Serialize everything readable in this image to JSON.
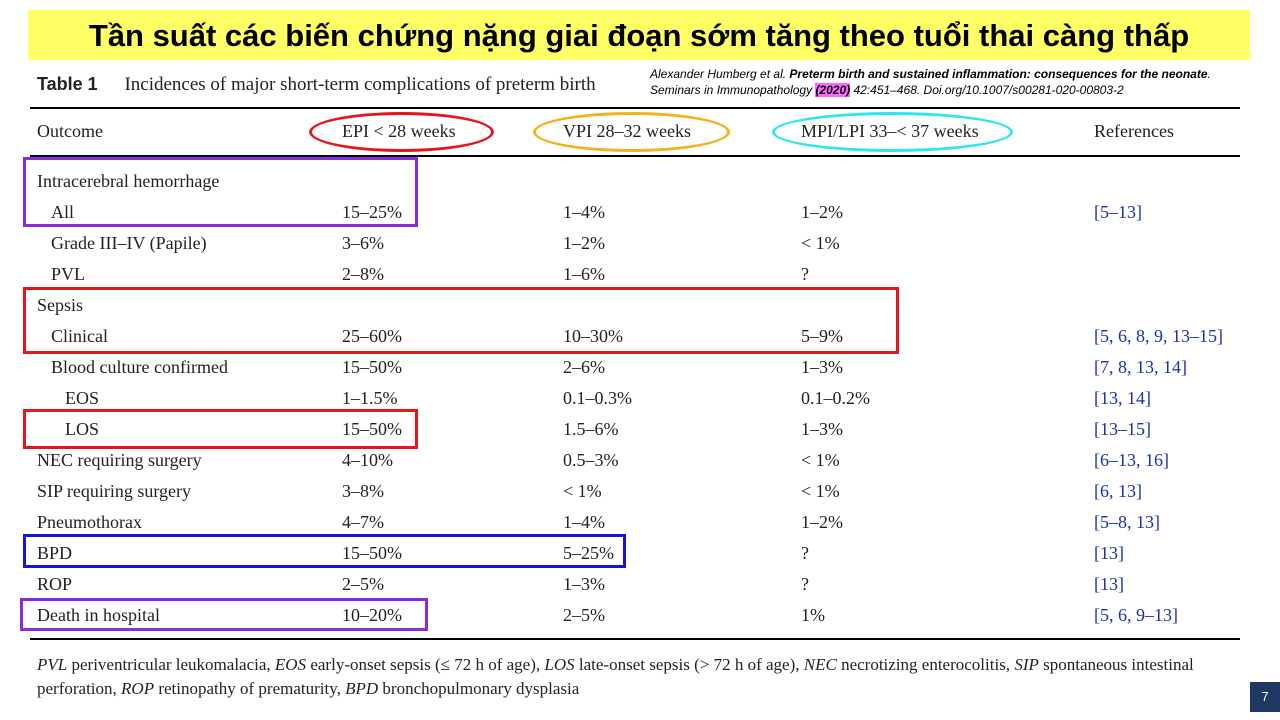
{
  "banner": {
    "title": "Tần suất các biến chứng nặng giai đoạn sớm tăng theo tuổi thai càng thấp"
  },
  "table": {
    "number": "Table 1",
    "caption": "Incidences of major short-term complications of preterm birth",
    "headers": [
      "Outcome",
      "EPI < 28 weeks",
      "VPI 28–32 weeks",
      "MPI/LPI 33–< 37 weeks",
      "References"
    ],
    "rows": [
      {
        "outcome": "Intracerebral hemorrhage",
        "indent": 0,
        "epi": "",
        "vpi": "",
        "mpi": "",
        "refs": ""
      },
      {
        "outcome": "All",
        "indent": 1,
        "epi": "15–25%",
        "vpi": "1–4%",
        "mpi": "1–2%",
        "refs": "[5–13]"
      },
      {
        "outcome": "Grade III–IV (Papile)",
        "indent": 1,
        "epi": "3–6%",
        "vpi": "1–2%",
        "mpi": "< 1%",
        "refs": ""
      },
      {
        "outcome": "PVL",
        "indent": 1,
        "epi": "2–8%",
        "vpi": "1–6%",
        "mpi": "?",
        "refs": ""
      },
      {
        "outcome": "Sepsis",
        "indent": 0,
        "epi": "",
        "vpi": "",
        "mpi": "",
        "refs": ""
      },
      {
        "outcome": "Clinical",
        "indent": 1,
        "epi": "25–60%",
        "vpi": "10–30%",
        "mpi": "5–9%",
        "refs": "[5, 6, 8, 9, 13–15]"
      },
      {
        "outcome": "Blood culture confirmed",
        "indent": 1,
        "epi": "15–50%",
        "vpi": "2–6%",
        "mpi": "1–3%",
        "refs": "[7, 8, 13, 14]"
      },
      {
        "outcome": "EOS",
        "indent": 2,
        "epi": "1–1.5%",
        "vpi": "0.1–0.3%",
        "mpi": "0.1–0.2%",
        "refs": "[13, 14]"
      },
      {
        "outcome": "LOS",
        "indent": 2,
        "epi": "15–50%",
        "vpi": "1.5–6%",
        "mpi": "1–3%",
        "refs": "[13–15]"
      },
      {
        "outcome": "NEC requiring surgery",
        "indent": 0,
        "epi": "4–10%",
        "vpi": "0.5–3%",
        "mpi": "< 1%",
        "refs": "[6–13, 16]"
      },
      {
        "outcome": "SIP requiring surgery",
        "indent": 0,
        "epi": "3–8%",
        "vpi": "< 1%",
        "mpi": "< 1%",
        "refs": "[6, 13]"
      },
      {
        "outcome": "Pneumothorax",
        "indent": 0,
        "epi": "4–7%",
        "vpi": "1–4%",
        "mpi": "1–2%",
        "refs": "[5–8, 13]"
      },
      {
        "outcome": "BPD",
        "indent": 0,
        "epi": "15–50%",
        "vpi": "5–25%",
        "mpi": "?",
        "refs": "[13]"
      },
      {
        "outcome": "ROP",
        "indent": 0,
        "epi": "2–5%",
        "vpi": "1–3%",
        "mpi": "?",
        "refs": "[13]"
      },
      {
        "outcome": "Death in hospital",
        "indent": 0,
        "epi": "10–20%",
        "vpi": "2–5%",
        "mpi": "1%",
        "refs": "[5, 6, 9–13]"
      }
    ]
  },
  "citation": {
    "authors": "Alexander Humberg et al.",
    "title": "Preterm birth and sustained inflammation: consequences for the neonate",
    "journal": ". Seminars in Immunopathology",
    "year": "(2020)",
    "details": "42:451–468. Doi.org/10.1007/s00281-020-00803-2"
  },
  "footnote": [
    {
      "abbr": "PVL",
      "text": " periventricular leukomalacia, "
    },
    {
      "abbr": "EOS",
      "text": " early-onset sepsis (≤ 72 h of age), "
    },
    {
      "abbr": "LOS",
      "text": " late-onset sepsis (> 72 h of age), "
    },
    {
      "abbr": "NEC",
      "text": " necrotizing enterocolitis, "
    },
    {
      "abbr": "SIP",
      "text": " spontaneous intestinal perforation, "
    },
    {
      "abbr": "ROP",
      "text": " retinopathy of prematurity, "
    },
    {
      "abbr": "BPD",
      "text": " bronchopulmonary dysplasia"
    }
  ],
  "page_number": "7",
  "highlight_colors": {
    "red": "#e8141c",
    "orange": "#f5b21c",
    "cyan": "#2ee6f0",
    "purple": "#8a2be2",
    "blue": "#1414d2"
  }
}
